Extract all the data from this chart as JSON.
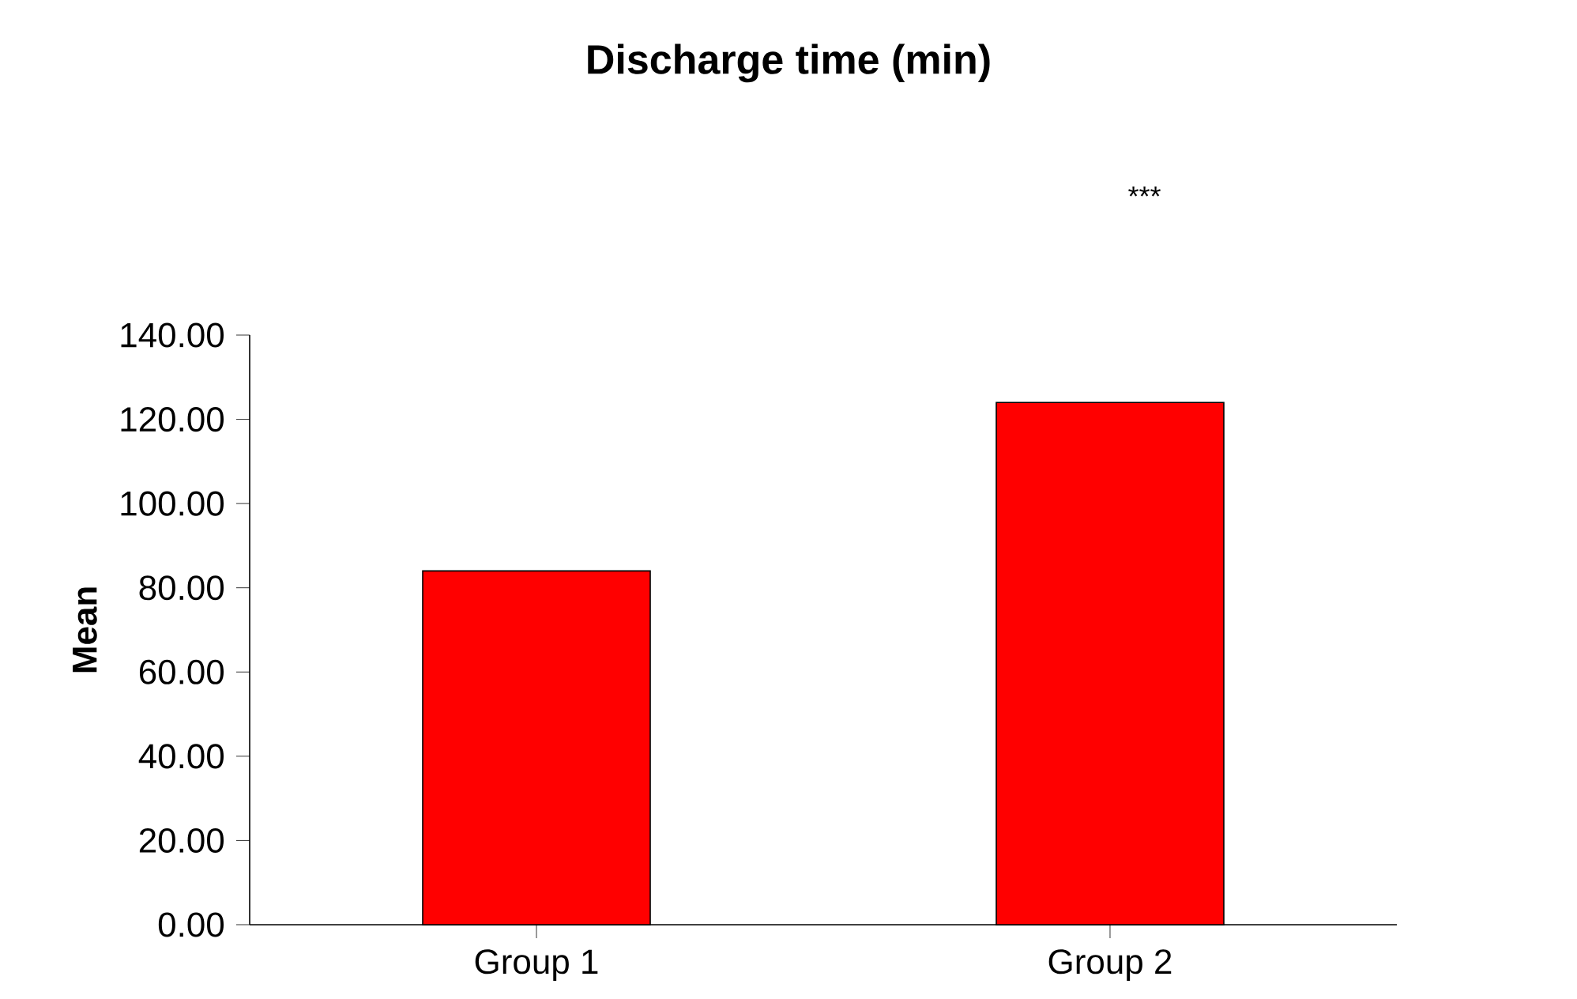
{
  "chart_data": {
    "type": "bar",
    "title": "Discharge time (min)",
    "ylabel": "Mean",
    "categories": [
      "Group 1",
      "Group 2"
    ],
    "values": [
      84,
      124
    ],
    "color": "#ff0000",
    "ylim": [
      0,
      140
    ],
    "yticks": [
      {
        "value": 0,
        "label": "0.00"
      },
      {
        "value": 20,
        "label": "20.00"
      },
      {
        "value": 40,
        "label": "40.00"
      },
      {
        "value": 60,
        "label": "60.00"
      },
      {
        "value": 80,
        "label": "80.00"
      },
      {
        "value": 100,
        "label": "100.00"
      },
      {
        "value": 120,
        "label": "120.00"
      },
      {
        "value": 140,
        "label": "140.00"
      }
    ],
    "annotations": [
      "***"
    ]
  }
}
